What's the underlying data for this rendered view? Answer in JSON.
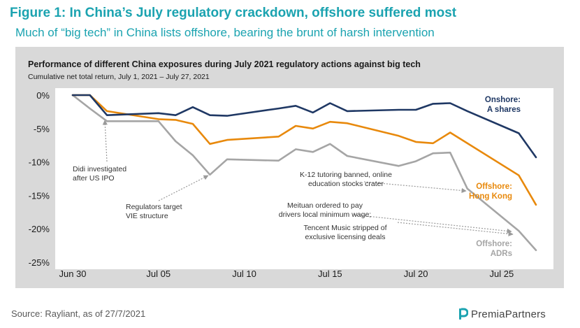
{
  "figure": {
    "title": "Figure 1: In China’s July regulatory crackdown, offshore suffered most",
    "subtitle": "Much of “big tech” in China lists offshore, bearing the brunt of harsh intervention"
  },
  "source": "Source: Rayliant, as of 27/7/2021",
  "logo": {
    "text": "PremiaPartners",
    "icon": "premia-logo-icon",
    "color": "#1ba3b0"
  },
  "chart_data": {
    "type": "line",
    "title": "Performance of different China exposures during July 2021 regulatory actions against big tech",
    "subtitle": "Cumulative net total return, July 1, 2021 – July 27, 2021",
    "ylim": [
      -25,
      0
    ],
    "yticks": [
      0,
      -5,
      -10,
      -15,
      -20,
      -25
    ],
    "ytick_labels": [
      "0%",
      "-5%",
      "-10%",
      "-15%",
      "-20%",
      "-25%"
    ],
    "xlim": [
      0,
      27
    ],
    "xticks": [
      0,
      5,
      10,
      15,
      20,
      25
    ],
    "xtick_labels": [
      "Jun 30",
      "Jul 05",
      "Jul 10",
      "Jul 15",
      "Jul 20",
      "Jul 25"
    ],
    "grid": false,
    "series": [
      {
        "name": "Onshore: A shares",
        "label_lines": [
          "Onshore:",
          "A shares"
        ],
        "color": "#1f3864",
        "x": [
          0,
          1,
          2,
          3,
          5,
          6,
          7,
          8,
          9,
          12,
          13,
          14,
          15,
          16,
          19,
          20,
          21,
          22,
          23,
          26,
          27
        ],
        "values": [
          0,
          0,
          -3.0,
          -2.9,
          -2.7,
          -3.0,
          -1.8,
          -3.0,
          -3.1,
          -2.0,
          -1.6,
          -2.6,
          -1.2,
          -2.4,
          -2.2,
          -2.2,
          -1.3,
          -1.2,
          -2.4,
          -5.7,
          -9.3
        ]
      },
      {
        "name": "Offshore: Hong Kong",
        "label_lines": [
          "Offshore:",
          "Hong Kong"
        ],
        "color": "#e8890c",
        "x": [
          0,
          1,
          2,
          5,
          6,
          7,
          8,
          9,
          12,
          13,
          14,
          15,
          16,
          19,
          20,
          21,
          22,
          26,
          27
        ],
        "values": [
          0,
          0,
          -2.4,
          -3.6,
          -3.7,
          -4.3,
          -7.3,
          -6.7,
          -6.2,
          -4.6,
          -5.0,
          -4.0,
          -4.2,
          -6.1,
          -7.0,
          -7.2,
          -5.6,
          -12.0,
          -16.4
        ]
      },
      {
        "name": "Offshore: ADRs",
        "label_lines": [
          "Offshore:",
          "ADRs"
        ],
        "color": "#a5a5a5",
        "x": [
          0,
          1,
          2,
          5,
          6,
          7,
          8,
          9,
          12,
          13,
          14,
          15,
          16,
          19,
          20,
          21,
          22,
          23,
          26,
          27
        ],
        "values": [
          0,
          -2.0,
          -3.9,
          -3.9,
          -6.9,
          -9.0,
          -11.9,
          -9.6,
          -9.8,
          -8.1,
          -8.5,
          -7.3,
          -9.1,
          -10.6,
          -9.9,
          -8.7,
          -8.6,
          -14.0,
          -20.3,
          -23.2
        ]
      }
    ],
    "annotations": [
      {
        "lines": [
          "Didi investigated",
          "after US IPO"
        ]
      },
      {
        "lines": [
          "Regulators target",
          "VIE structure"
        ]
      },
      {
        "lines": [
          "K-12 tutoring banned, online",
          "education stocks crater"
        ]
      },
      {
        "lines": [
          "Meituan ordered to pay",
          "drivers local minimum wage;"
        ]
      },
      {
        "lines": [
          "Tencent Music stripped of",
          "exclusive licensing deals"
        ]
      }
    ]
  }
}
